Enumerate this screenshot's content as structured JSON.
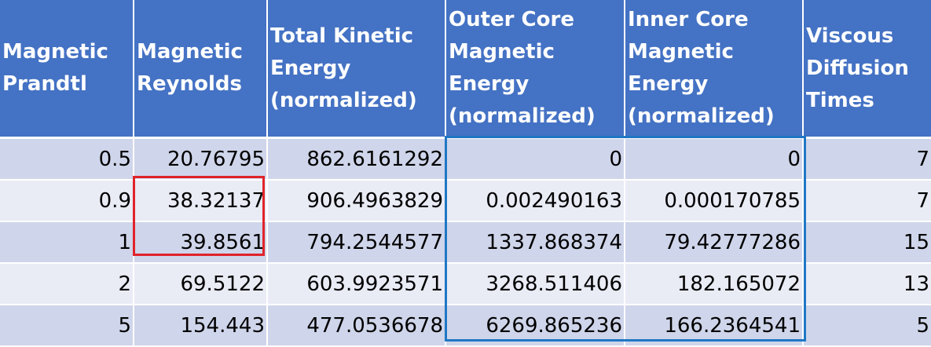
{
  "table": {
    "headers": [
      "Magnetic Prandtl",
      "Magnetic Reynolds",
      "Total Kinetic Energy (normalized)",
      "Outer Core Magnetic Energy (normalized)",
      "Inner Core Magnetic Energy (normalized)",
      "Viscous Diffusion Times"
    ],
    "rows": [
      [
        "0.5",
        "20.76795",
        "862.6161292",
        "0",
        "0",
        "7"
      ],
      [
        "0.9",
        "38.32137",
        "906.4963829",
        "0.002490163",
        "0.000170785",
        "7"
      ],
      [
        "1",
        "39.8561",
        "794.2544577",
        "1337.868374",
        "79.42777286",
        "15"
      ],
      [
        "2",
        "69.5122",
        "603.9923571",
        "3268.511406",
        "182.165072",
        "13"
      ],
      [
        "5",
        "154.443",
        "477.0536678",
        "6269.865236",
        "166.2364541",
        "5"
      ]
    ]
  },
  "highlights": {
    "red_box_color": "#e0232a",
    "blue_box_color": "#1f77c4"
  }
}
